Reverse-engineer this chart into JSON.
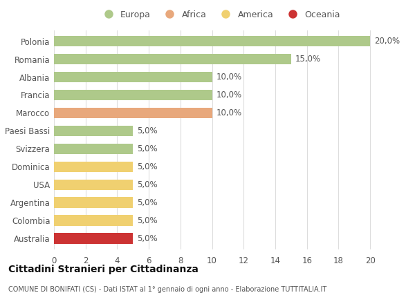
{
  "categories": [
    "Polonia",
    "Romania",
    "Albania",
    "Francia",
    "Marocco",
    "Paesi Bassi",
    "Svizzera",
    "Dominica",
    "USA",
    "Argentina",
    "Colombia",
    "Australia"
  ],
  "values": [
    20.0,
    15.0,
    10.0,
    10.0,
    10.0,
    5.0,
    5.0,
    5.0,
    5.0,
    5.0,
    5.0,
    5.0
  ],
  "bar_colors": [
    "#aec98a",
    "#aec98a",
    "#aec98a",
    "#aec98a",
    "#e8a87c",
    "#aec98a",
    "#aec98a",
    "#f0d070",
    "#f0d070",
    "#f0d070",
    "#f0d070",
    "#cc3333"
  ],
  "labels": [
    "20,0%",
    "15,0%",
    "10,0%",
    "10,0%",
    "10,0%",
    "5,0%",
    "5,0%",
    "5,0%",
    "5,0%",
    "5,0%",
    "5,0%",
    "5,0%"
  ],
  "legend": [
    {
      "label": "Europa",
      "color": "#aec98a"
    },
    {
      "label": "Africa",
      "color": "#e8a87c"
    },
    {
      "label": "America",
      "color": "#f0d070"
    },
    {
      "label": "Oceania",
      "color": "#cc3333"
    }
  ],
  "xlim": [
    0,
    21
  ],
  "xticks": [
    0,
    2,
    4,
    6,
    8,
    10,
    12,
    14,
    16,
    18,
    20
  ],
  "title": "Cittadini Stranieri per Cittadinanza",
  "subtitle": "COMUNE DI BONIFATI (CS) - Dati ISTAT al 1° gennaio di ogni anno - Elaborazione TUTTITALIA.IT",
  "background_color": "#ffffff",
  "grid_color": "#dddddd",
  "label_fontsize": 8.5,
  "bar_height": 0.6
}
